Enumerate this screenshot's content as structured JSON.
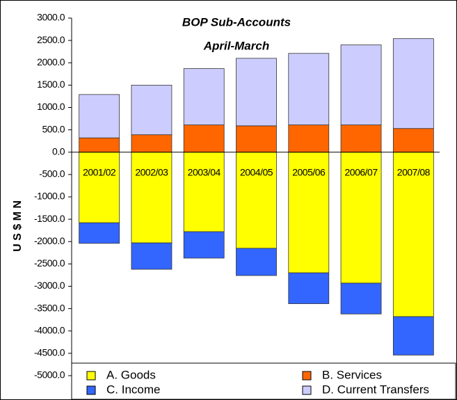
{
  "chart_data": {
    "type": "stacked-bar",
    "title": "BOP Sub-Accounts",
    "subtitle": "April-March",
    "y_label": "U S $ M N",
    "categories": [
      "2001/02",
      "2002/03",
      "2003/04",
      "2004/05",
      "2005/06",
      "2006/07",
      "2007/08"
    ],
    "series": [
      {
        "name": "A. Goods",
        "color": "#ffff00",
        "values": [
          -1580,
          -2030,
          -1780,
          -2150,
          -2700,
          -2930,
          -3680
        ]
      },
      {
        "name": "B. Services",
        "color": "#ff6600",
        "values": [
          320,
          390,
          610,
          590,
          610,
          610,
          530
        ]
      },
      {
        "name": "C. Income",
        "color": "#3366ff",
        "values": [
          -460,
          -590,
          -590,
          -610,
          -690,
          -690,
          -860
        ]
      },
      {
        "name": "D. Current Transfers",
        "color": "#ccccff",
        "values": [
          970,
          1110,
          1260,
          1510,
          1600,
          1790,
          2010
        ]
      }
    ],
    "ylim": [
      -5000,
      3000
    ],
    "yticks": [
      {
        "value": 3000,
        "label": "3000.0"
      },
      {
        "value": 2500,
        "label": "2500.0"
      },
      {
        "value": 2000,
        "label": "2000.0"
      },
      {
        "value": 1500,
        "label": "1500.0"
      },
      {
        "value": 1000,
        "label": "1000.0"
      },
      {
        "value": 500,
        "label": "500.0"
      },
      {
        "value": 0,
        "label": "0.0"
      },
      {
        "value": -500,
        "label": "-500.0"
      },
      {
        "value": -1000,
        "label": "-1000.0"
      },
      {
        "value": -1500,
        "label": "-1500.0"
      },
      {
        "value": -2000,
        "label": "-2000.0"
      },
      {
        "value": -2500,
        "label": "-2500.0"
      },
      {
        "value": -3000,
        "label": "-3000.0"
      },
      {
        "value": -3500,
        "label": "-3500.0"
      },
      {
        "value": -4000,
        "label": "-4000.0"
      },
      {
        "value": -4500,
        "label": "-4500.0"
      },
      {
        "value": -5000,
        "label": "-5000.0"
      }
    ],
    "grid": false
  }
}
